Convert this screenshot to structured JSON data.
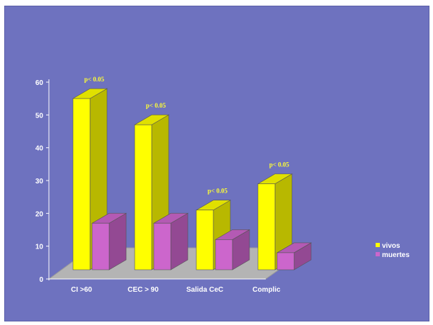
{
  "chart_data": {
    "type": "bar",
    "categories": [
      "CI >60",
      "CEC > 90",
      "Salida CeC",
      "Complic"
    ],
    "series": [
      {
        "name": "vivos",
        "values": [
          55,
          47,
          21,
          29
        ],
        "color": "#ffff00"
      },
      {
        "name": "muertes",
        "values": [
          17,
          17,
          12,
          8
        ],
        "color": "#cc66cc"
      }
    ],
    "annotations": [
      "p< 0.05",
      "p< 0.05",
      "p< 0.05",
      "p< 0.05"
    ],
    "y_ticks": [
      "0",
      "10",
      "20",
      "30",
      "40",
      "50",
      "60"
    ],
    "ylim": [
      0,
      60
    ],
    "legend_position": "right",
    "background_color": "#6e72bf",
    "floor_color": "#b4b4b4",
    "grid": false
  }
}
